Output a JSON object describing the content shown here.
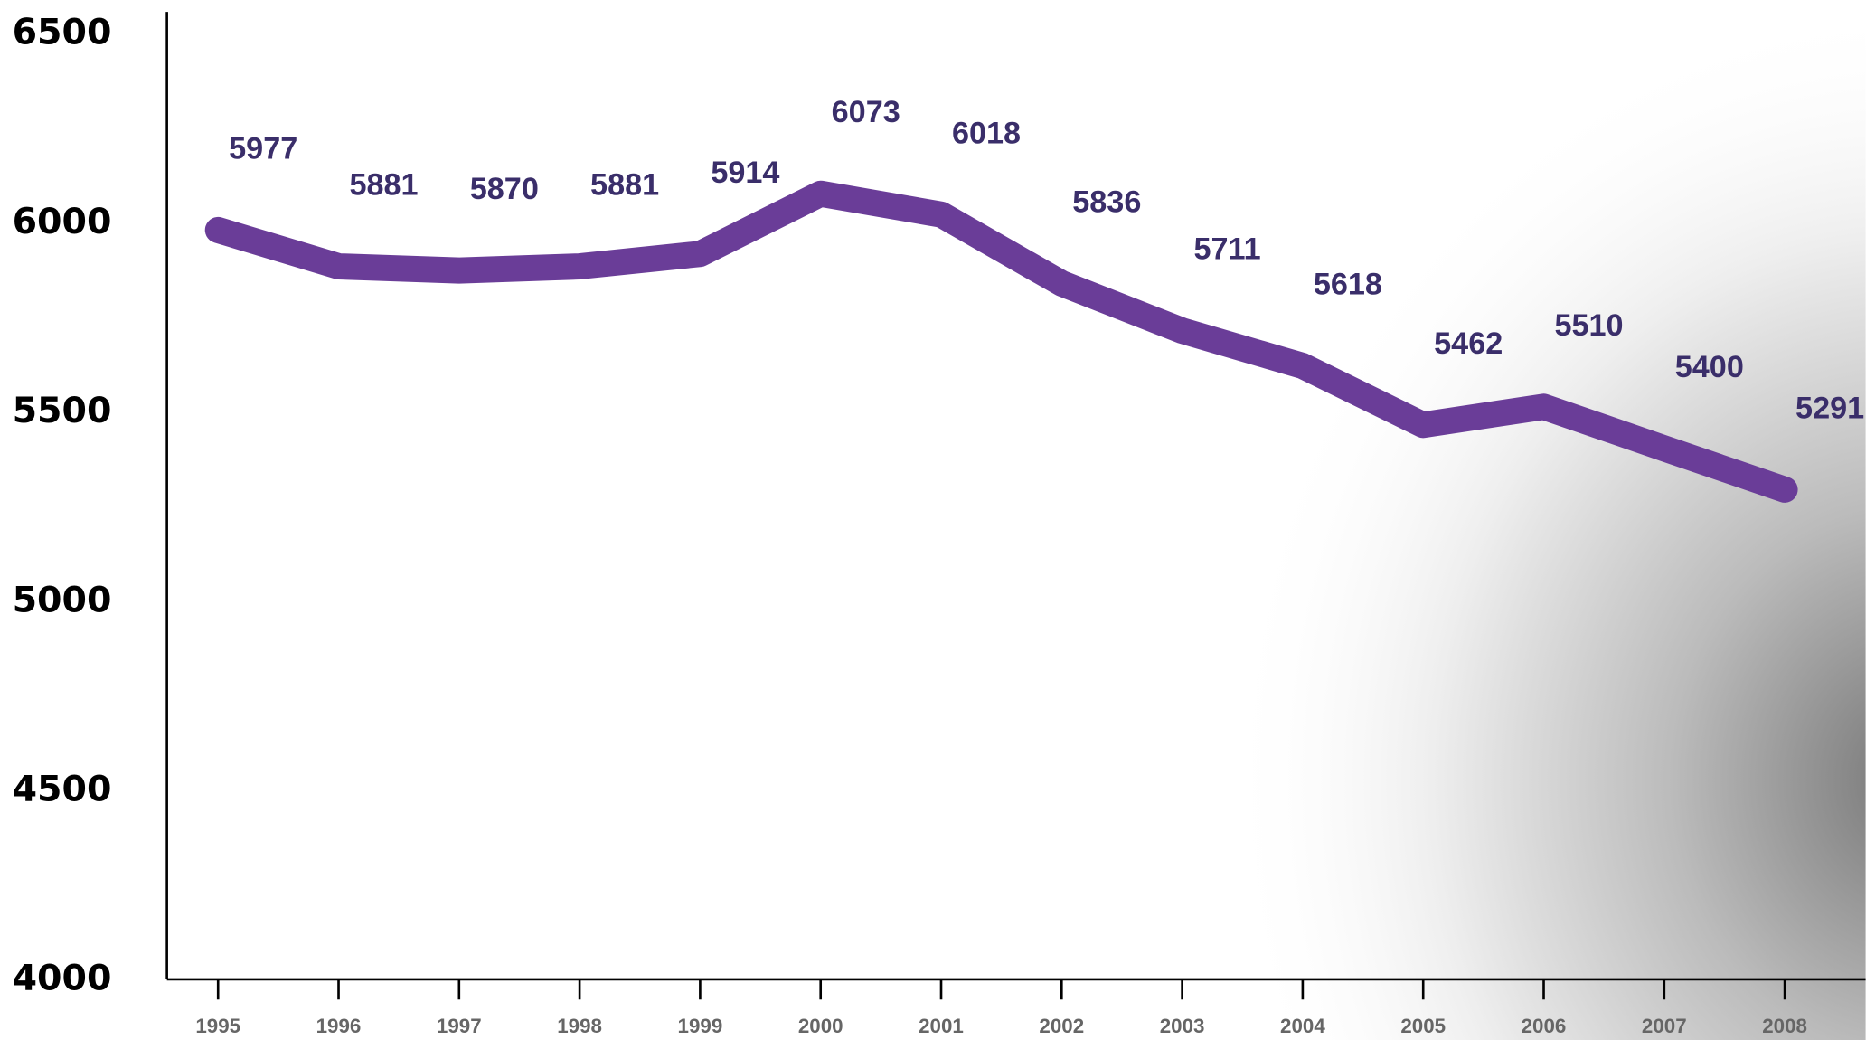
{
  "chart_data": {
    "type": "line",
    "categories": [
      "1995",
      "1996",
      "1997",
      "1998",
      "1999",
      "2000",
      "2001",
      "2002",
      "2003",
      "2004",
      "2005",
      "2006",
      "2007",
      "2008"
    ],
    "series": [
      {
        "color": "#6a3d98",
        "values": [
          5977,
          5881,
          5870,
          5881,
          5914,
          6073,
          6018,
          5836,
          5711,
          5618,
          5462,
          5510,
          5400,
          5291
        ]
      }
    ],
    "ylim": [
      4000,
      6500
    ],
    "yticks": [
      4000,
      4500,
      5000,
      5500,
      6000,
      6500
    ]
  }
}
